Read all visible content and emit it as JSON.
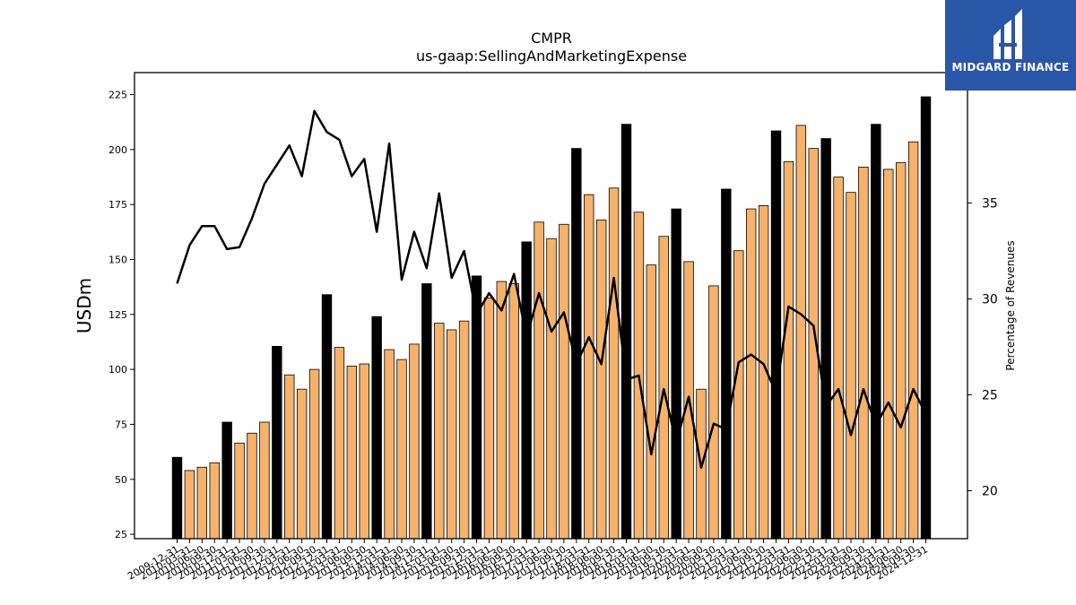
{
  "chart_data": {
    "type": "bar",
    "title": "CMPR",
    "subtitle": "us-gaap:SellingAndMarketingExpense",
    "ylabel": "USDm",
    "y2label": "Percentage of Revenues",
    "ylim": [
      23,
      235
    ],
    "y2lim": [
      17.5,
      41.8
    ],
    "yticks": [
      25,
      50,
      75,
      100,
      125,
      150,
      175,
      200,
      225
    ],
    "y2ticks": [
      20,
      25,
      30,
      35
    ],
    "colors": {
      "annual": "#000000",
      "quarter": "#f6b26b",
      "line": "#000000"
    },
    "categories": [
      "2009-12-31",
      "2010-03-31",
      "2010-06-30",
      "2010-09-30",
      "2010-12-31",
      "2011-03-31",
      "2011-06-30",
      "2011-09-30",
      "2011-12-31",
      "2012-03-31",
      "2012-06-30",
      "2012-09-30",
      "2012-12-31",
      "2013-03-31",
      "2013-06-30",
      "2013-09-30",
      "2013-12-31",
      "2014-03-31",
      "2014-06-30",
      "2014-09-30",
      "2014-12-31",
      "2015-03-31",
      "2015-06-30",
      "2015-09-30",
      "2015-12-31",
      "2016-03-31",
      "2016-06-30",
      "2016-09-30",
      "2016-12-31",
      "2017-03-31",
      "2017-06-30",
      "2017-09-30",
      "2017-12-31",
      "2018-03-31",
      "2018-06-30",
      "2018-09-30",
      "2018-12-31",
      "2019-03-31",
      "2019-06-30",
      "2019-09-30",
      "2019-12-31",
      "2020-03-31",
      "2020-06-30",
      "2020-09-30",
      "2020-12-31",
      "2021-03-31",
      "2021-06-30",
      "2021-09-30",
      "2021-12-31",
      "2022-03-31",
      "2022-06-30",
      "2022-09-30",
      "2022-12-31",
      "2023-03-31",
      "2023-06-30",
      "2023-09-30",
      "2023-12-31",
      "2024-03-31",
      "2024-06-30",
      "2024-09-30",
      "2024-12-31"
    ],
    "series": [
      {
        "kind": "bar",
        "values": [
          60,
          54,
          55.5,
          57.5,
          76,
          66.5,
          71,
          76,
          110.5,
          97.5,
          91,
          100,
          134,
          110,
          101.5,
          102.5,
          124,
          109,
          104.5,
          111.5,
          139,
          121,
          118,
          122,
          142.5,
          132.5,
          140,
          139,
          158,
          167,
          159.5,
          166,
          200.5,
          179.5,
          168,
          182.5,
          211.5,
          171.5,
          147.5,
          160.5,
          173,
          149,
          91,
          138,
          182,
          154,
          173,
          174.5,
          208.5,
          194.5,
          211,
          200.5,
          205,
          187.5,
          180.5,
          192,
          211.5,
          191,
          194,
          203.5,
          224
        ],
        "annual": [
          true,
          false,
          false,
          false,
          true,
          false,
          false,
          false,
          true,
          false,
          false,
          false,
          true,
          false,
          false,
          false,
          true,
          false,
          false,
          false,
          true,
          false,
          false,
          false,
          true,
          false,
          false,
          false,
          true,
          false,
          false,
          false,
          true,
          false,
          false,
          false,
          true,
          false,
          false,
          false,
          true,
          false,
          false,
          false,
          true,
          false,
          false,
          false,
          true,
          false,
          false,
          false,
          true,
          false,
          false,
          false,
          true,
          false,
          false,
          false,
          true
        ]
      },
      {
        "kind": "line",
        "axis": "right",
        "values": [
          30.8,
          32.8,
          33.8,
          33.8,
          32.6,
          32.7,
          34.2,
          36.0,
          37.0,
          38.0,
          36.4,
          39.8,
          38.7,
          38.3,
          36.4,
          37.3,
          33.5,
          38.1,
          31.0,
          33.5,
          31.6,
          35.5,
          31.1,
          32.5,
          29.2,
          30.3,
          29.4,
          31.3,
          28.0,
          30.3,
          28.3,
          29.3,
          26.6,
          28.0,
          26.6,
          31.1,
          25.8,
          26.0,
          21.9,
          25.3,
          22.5,
          24.9,
          21.2,
          23.5,
          23.2,
          26.7,
          27.1,
          26.6,
          25.1,
          29.6,
          29.2,
          28.6,
          24.4,
          25.3,
          22.9,
          25.3,
          23.4,
          24.6,
          23.3,
          25.3,
          24.0
        ]
      }
    ]
  },
  "logo": {
    "text": "MIDGARD FINANCE",
    "icon": "midgard-logo-icon"
  }
}
